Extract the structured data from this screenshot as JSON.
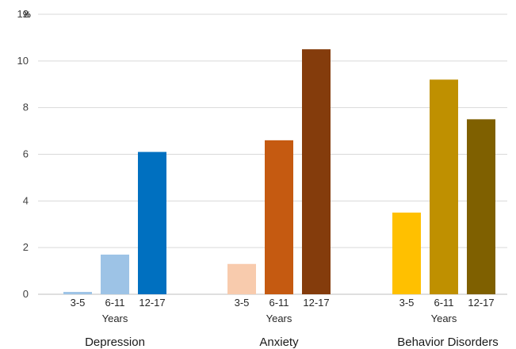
{
  "chart_data": {
    "type": "bar",
    "ylim": [
      0,
      12
    ],
    "yticks": [
      0,
      2,
      4,
      6,
      8,
      10,
      12
    ],
    "y_unit": "%",
    "grid": true,
    "legend": "none",
    "groups": [
      {
        "name": "Depression",
        "sublabel": "Years",
        "categories": [
          "3-5",
          "6-11",
          "12-17"
        ],
        "values": [
          0.1,
          1.7,
          6.1
        ],
        "colors": [
          "#9dc3e6",
          "#9dc3e6",
          "#0070c0"
        ]
      },
      {
        "name": "Anxiety",
        "sublabel": "Years",
        "categories": [
          "3-5",
          "6-11",
          "12-17"
        ],
        "values": [
          1.3,
          6.6,
          10.5
        ],
        "colors": [
          "#f8cbad",
          "#c55a11",
          "#843c0c"
        ]
      },
      {
        "name": "Behavior Disorders",
        "sublabel": "Years",
        "categories": [
          "3-5",
          "6-11",
          "12-17"
        ],
        "values": [
          3.5,
          9.2,
          7.5
        ],
        "colors": [
          "#ffc000",
          "#bf9000",
          "#7f6000"
        ]
      }
    ]
  }
}
